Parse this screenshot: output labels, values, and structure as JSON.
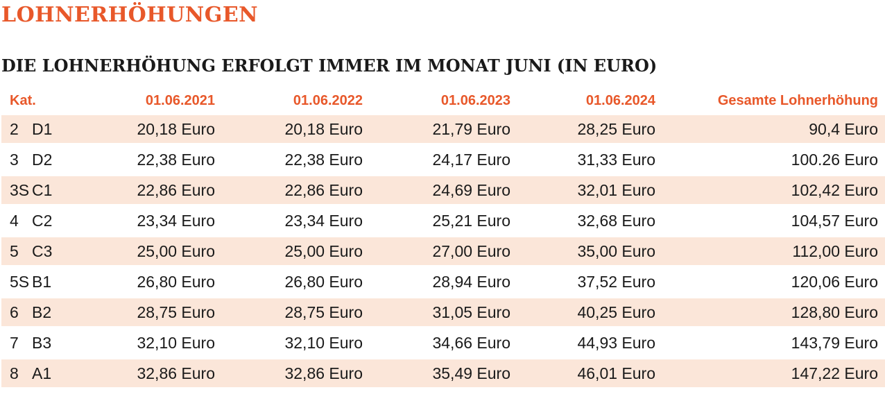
{
  "title": "LOHNERHÖHUNGEN",
  "subtitle": "DIE LOHNERHÖHUNG ERFOLGT IMMER IM MONAT JUNI (IN EURO)",
  "colors": {
    "accent": "#e8582a",
    "row_shade": "#fbe6d9",
    "text": "#1a1a1a"
  },
  "table": {
    "headers": [
      "Kat.",
      "01.06.2021",
      "01.06.2022",
      "01.06.2023",
      "01.06.2024",
      "Gesamte Lohnerhöhung"
    ],
    "rows": [
      {
        "num": "2",
        "code": "D1",
        "y2021": "20,18 Euro",
        "y2022": "20,18 Euro",
        "y2023": "21,79 Euro",
        "y2024": "28,25 Euro",
        "total": "90,4 Euro"
      },
      {
        "num": "3",
        "code": "D2",
        "y2021": "22,38 Euro",
        "y2022": "22,38 Euro",
        "y2023": "24,17 Euro",
        "y2024": "31,33 Euro",
        "total": "100.26 Euro"
      },
      {
        "num": "3S",
        "code": "C1",
        "y2021": "22,86 Euro",
        "y2022": "22,86 Euro",
        "y2023": "24,69 Euro",
        "y2024": "32,01 Euro",
        "total": "102,42 Euro"
      },
      {
        "num": "4",
        "code": "C2",
        "y2021": "23,34 Euro",
        "y2022": "23,34 Euro",
        "y2023": "25,21 Euro",
        "y2024": "32,68 Euro",
        "total": "104,57 Euro"
      },
      {
        "num": "5",
        "code": "C3",
        "y2021": "25,00 Euro",
        "y2022": "25,00 Euro",
        "y2023": "27,00 Euro",
        "y2024": "35,00 Euro",
        "total": "112,00 Euro"
      },
      {
        "num": "5S",
        "code": "B1",
        "y2021": "26,80 Euro",
        "y2022": "26,80 Euro",
        "y2023": "28,94 Euro",
        "y2024": "37,52 Euro",
        "total": "120,06 Euro"
      },
      {
        "num": "6",
        "code": "B2",
        "y2021": "28,75 Euro",
        "y2022": "28,75 Euro",
        "y2023": "31,05 Euro",
        "y2024": "40,25 Euro",
        "total": "128,80 Euro"
      },
      {
        "num": "7",
        "code": "B3",
        "y2021": "32,10 Euro",
        "y2022": "32,10 Euro",
        "y2023": "34,66 Euro",
        "y2024": "44,93 Euro",
        "total": "143,79 Euro"
      },
      {
        "num": "8",
        "code": "A1",
        "y2021": "32,86 Euro",
        "y2022": "32,86 Euro",
        "y2023": "35,49 Euro",
        "y2024": "46,01 Euro",
        "total": "147,22 Euro"
      }
    ]
  }
}
